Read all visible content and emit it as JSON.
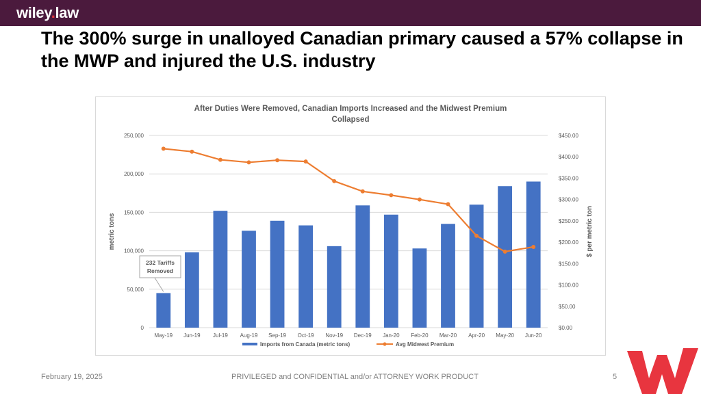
{
  "header": {
    "logo_main": "wiley",
    "logo_dot": ".",
    "logo_tail": "law"
  },
  "slide": {
    "title": "The 300% surge in unalloyed Canadian primary caused a 57% collapse in the MWP and injured the U.S. industry"
  },
  "footer": {
    "date": "February 19, 2025",
    "confidentiality": "PRIVILEGED and CONFIDENTIAL and/or ATTORNEY WORK PRODUCT",
    "page_number": "5"
  },
  "colors": {
    "bar": "#4472c4",
    "line": "#ed7d31",
    "header_bg": "#4b1a3d",
    "brand_red": "#e8353f"
  },
  "chart_data": {
    "type": "bar",
    "title": "After Duties Were Removed, Canadian Imports Increased and the Midwest Premium Collapsed",
    "title_lines": [
      "After Duties Were Removed, Canadian Imports Increased and the Midwest Premium",
      "Collapsed"
    ],
    "categories": [
      "May-19",
      "Jun-19",
      "Jul-19",
      "Aug-19",
      "Sep-19",
      "Oct-19",
      "Nov-19",
      "Dec-19",
      "Jan-20",
      "Feb-20",
      "Mar-20",
      "Apr-20",
      "May-20",
      "Jun-20"
    ],
    "series": [
      {
        "name": "Imports from Canada (metric tons)",
        "type": "bar",
        "axis": "left",
        "values": [
          45000,
          98000,
          152000,
          126000,
          139000,
          133000,
          106000,
          159000,
          147000,
          103000,
          135000,
          160000,
          184000,
          190000
        ]
      },
      {
        "name": "Avg Midwest Premium",
        "type": "line",
        "axis": "right",
        "values": [
          419,
          412,
          393,
          387,
          392,
          389,
          343,
          319,
          310,
          300,
          289,
          215,
          178,
          189
        ]
      }
    ],
    "y_left": {
      "label": "metric tons",
      "min": 0,
      "max": 250000,
      "ticks": [
        0,
        50000,
        100000,
        150000,
        200000,
        250000
      ],
      "tick_labels": [
        "0",
        "50,000",
        "100,000",
        "150,000",
        "200,000",
        "250,000"
      ]
    },
    "y_right": {
      "label": "$ per metric ton",
      "min": 0,
      "max": 450,
      "ticks": [
        0,
        50,
        100,
        150,
        200,
        250,
        300,
        350,
        400,
        450
      ],
      "tick_labels": [
        "$0.00",
        "$50.00",
        "$100.00",
        "$150.00",
        "$200.00",
        "$250.00",
        "$300.00",
        "$350.00",
        "$400.00",
        "$450.00"
      ]
    },
    "grid": true,
    "legend_position": "bottom",
    "annotation": {
      "lines": [
        "232 Tariffs",
        "Removed"
      ],
      "category": "May-19"
    }
  }
}
